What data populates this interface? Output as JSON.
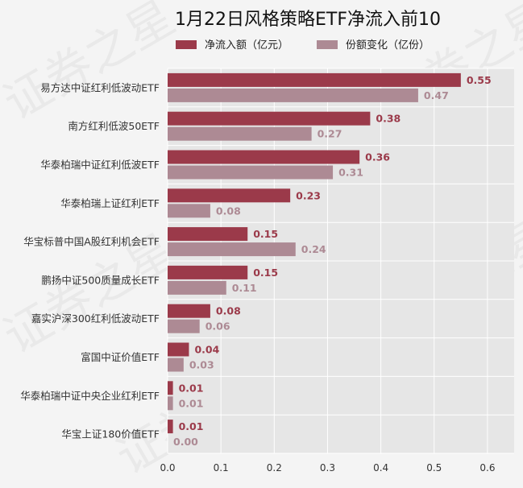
{
  "chart_data": {
    "type": "bar",
    "orientation": "horizontal",
    "title": "1月22日风格策略ETF净流入前10",
    "xlabel": "",
    "ylabel": "",
    "xlim": [
      0,
      0.65
    ],
    "xticks": [
      "0.0",
      "0.1",
      "0.2",
      "0.3",
      "0.4",
      "0.5",
      "0.6"
    ],
    "grid": true,
    "legend_position": "top-center",
    "categories": [
      "易方达中证红利低波动ETF",
      "南方红利低波50ETF",
      "华泰柏瑞中证红利低波ETF",
      "华泰柏瑞上证红利ETF",
      "华宝标普中国A股红利机会ETF",
      "鹏扬中证500质量成长ETF",
      "嘉实沪深300红利低波动ETF",
      "富国中证价值ETF",
      "华泰柏瑞中证中央企业红利ETF",
      "华宝上证180价值ETF"
    ],
    "series": [
      {
        "name": "净流入额（亿元）",
        "color": "#9b3a4a",
        "values": [
          0.55,
          0.38,
          0.36,
          0.23,
          0.15,
          0.15,
          0.08,
          0.04,
          0.01,
          0.01
        ]
      },
      {
        "name": "份额变化（亿份）",
        "color": "#ad8a94",
        "values": [
          0.47,
          0.27,
          0.31,
          0.08,
          0.24,
          0.11,
          0.06,
          0.03,
          0.01,
          0.0
        ]
      }
    ],
    "watermark": "证券之星"
  }
}
